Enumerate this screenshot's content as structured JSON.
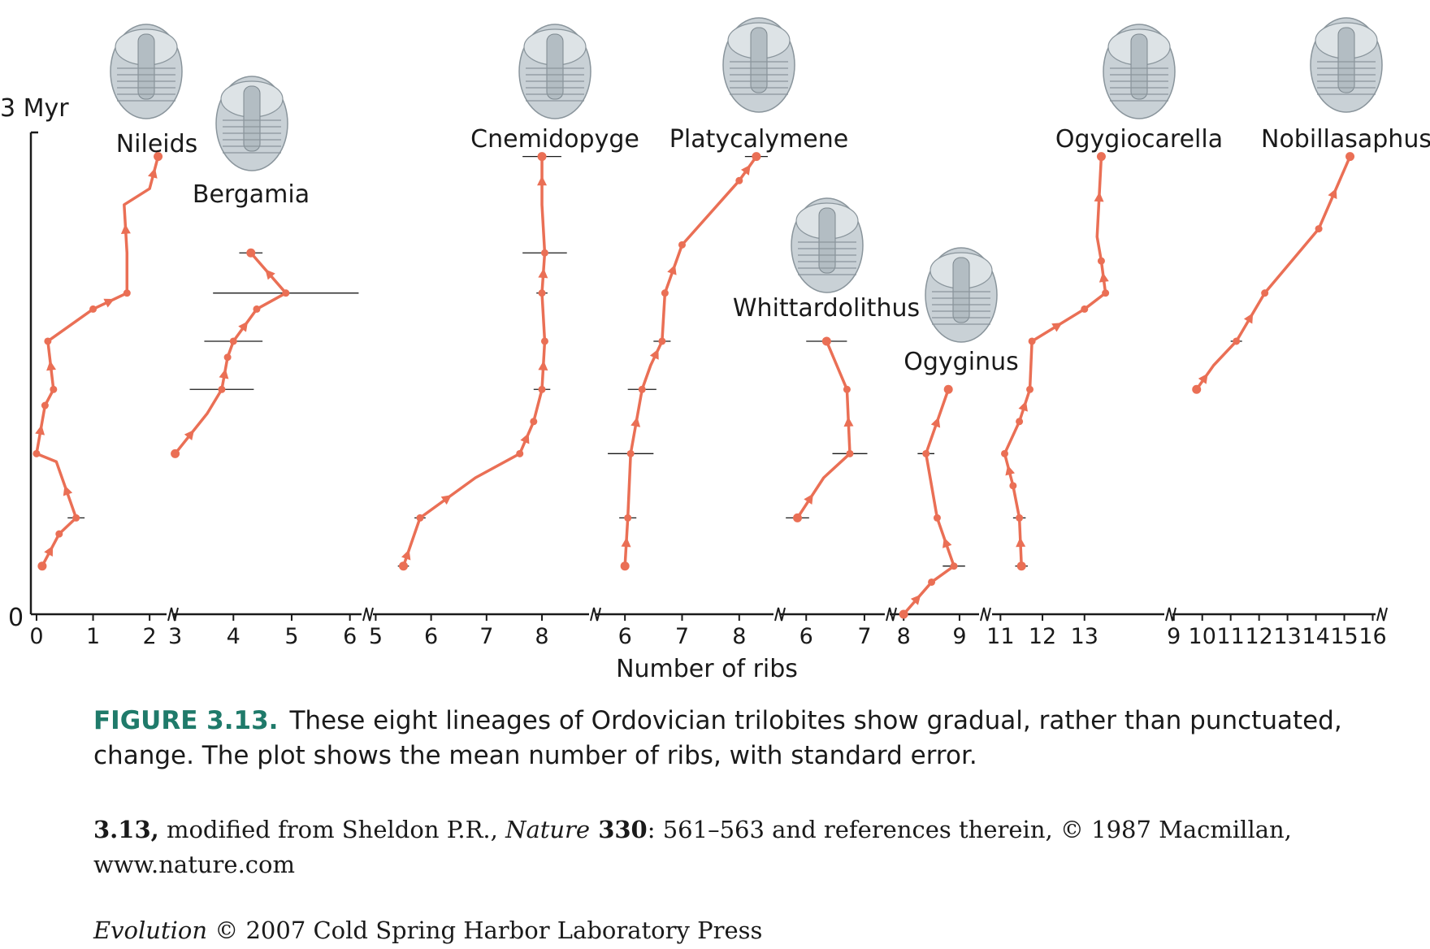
{
  "chart_data": {
    "type": "line",
    "ylabel_top": "3 Myr",
    "ylabel_bottom": "0",
    "xlabel": "Number of ribs",
    "ylim": [
      0,
      3
    ],
    "series_color": "#ea6f55",
    "panels": [
      {
        "name": "Nileids",
        "icon": "trilobite-nileid-icon",
        "xlim": [
          -0.1,
          2.3
        ],
        "ticks": [
          0,
          1,
          2
        ],
        "points": [
          [
            0.1,
            0.3,
            0
          ],
          [
            0.4,
            0.5,
            0
          ],
          [
            0.7,
            0.6,
            0.15
          ],
          [
            0.35,
            0.95,
            0
          ],
          [
            0.0,
            1.0,
            0
          ],
          [
            0.15,
            1.3,
            0
          ],
          [
            0.3,
            1.4,
            0.05
          ],
          [
            0.2,
            1.7,
            0
          ],
          [
            1.0,
            1.9,
            0
          ],
          [
            1.6,
            2.0,
            0.05
          ],
          [
            1.6,
            2.25,
            0
          ],
          [
            1.55,
            2.55,
            0
          ],
          [
            2.0,
            2.65,
            0
          ],
          [
            2.15,
            2.85,
            0
          ]
        ]
      },
      {
        "name": "Bergamia",
        "icon": "trilobite-bergamia-icon",
        "xlim": [
          2.95,
          6.2
        ],
        "ticks": [
          3,
          4,
          5,
          6
        ],
        "points": [
          [
            3.0,
            1.0,
            0
          ],
          [
            3.55,
            1.25,
            0
          ],
          [
            3.8,
            1.4,
            0.55
          ],
          [
            3.9,
            1.6,
            0
          ],
          [
            4.0,
            1.7,
            0.5
          ],
          [
            4.4,
            1.9,
            0
          ],
          [
            4.9,
            2.0,
            1.25
          ],
          [
            4.3,
            2.25,
            0.2
          ]
        ]
      },
      {
        "name": "Cnemidopyge",
        "icon": "trilobite-cnemidopyge-icon",
        "xlim": [
          4.95,
          8.85
        ],
        "ticks": [
          5,
          6,
          7,
          8
        ],
        "points": [
          [
            5.5,
            0.3,
            0.1
          ],
          [
            5.65,
            0.45,
            0
          ],
          [
            5.8,
            0.6,
            0.1
          ],
          [
            6.8,
            0.85,
            0
          ],
          [
            7.6,
            1.0,
            0
          ],
          [
            7.85,
            1.2,
            0
          ],
          [
            8.0,
            1.4,
            0.15
          ],
          [
            8.05,
            1.7,
            0
          ],
          [
            8.0,
            2.0,
            0.1
          ],
          [
            8.05,
            2.25,
            0.4
          ],
          [
            8.0,
            2.55,
            0
          ],
          [
            8.0,
            2.85,
            0.35
          ]
        ]
      },
      {
        "name": "Platycalymene",
        "icon": "trilobite-platycalymene-icon",
        "xlim": [
          5.5,
          8.6
        ],
        "ticks": [
          6,
          7,
          8
        ],
        "points": [
          [
            6.0,
            0.3,
            0
          ],
          [
            6.05,
            0.6,
            0.15
          ],
          [
            6.1,
            1.0,
            0.4
          ],
          [
            6.3,
            1.4,
            0.25
          ],
          [
            6.45,
            1.55,
            0
          ],
          [
            6.65,
            1.7,
            0.15
          ],
          [
            6.7,
            2.0,
            0
          ],
          [
            7.0,
            2.3,
            0
          ],
          [
            8.0,
            2.7,
            0
          ],
          [
            8.3,
            2.85,
            0.2
          ]
        ]
      },
      {
        "name": "Whittardolithus",
        "icon": "trilobite-whittardolithus-icon",
        "xlim": [
          5.55,
          7.35
        ],
        "ticks": [
          6,
          7
        ],
        "points": [
          [
            5.85,
            0.6,
            0.2
          ],
          [
            6.3,
            0.85,
            0
          ],
          [
            6.75,
            1.0,
            0.3
          ],
          [
            6.7,
            1.4,
            0
          ],
          [
            6.35,
            1.7,
            0.35
          ]
        ]
      },
      {
        "name": "Ogyginus",
        "icon": "trilobite-ogyginus-icon",
        "xlim": [
          7.75,
          9.35
        ],
        "ticks": [
          8,
          9
        ],
        "points": [
          [
            8.0,
            0.0,
            0
          ],
          [
            8.5,
            0.2,
            0
          ],
          [
            8.9,
            0.3,
            0.2
          ],
          [
            8.6,
            0.6,
            0
          ],
          [
            8.4,
            1.0,
            0.15
          ],
          [
            8.8,
            1.4,
            0
          ]
        ]
      },
      {
        "name": "Ogygiocarella",
        "icon": "trilobite-ogygiocarella-icon",
        "xlim": [
          10.8,
          14.9
        ],
        "ticks": [
          11,
          12,
          13
        ],
        "points": [
          [
            11.5,
            0.3,
            0.15
          ],
          [
            11.45,
            0.6,
            0.15
          ],
          [
            11.3,
            0.8,
            0
          ],
          [
            11.1,
            1.0,
            0
          ],
          [
            11.45,
            1.2,
            0
          ],
          [
            11.7,
            1.4,
            0
          ],
          [
            11.75,
            1.7,
            0
          ],
          [
            13.0,
            1.9,
            0
          ],
          [
            13.5,
            2.0,
            0
          ],
          [
            13.4,
            2.2,
            0
          ],
          [
            13.3,
            2.35,
            0
          ],
          [
            13.4,
            2.85,
            0
          ]
        ]
      },
      {
        "name": "Nobillasaphus",
        "icon": "trilobite-nobillasaphus-icon",
        "xlim": [
          8.95,
          16.1
        ],
        "ticks": [
          9,
          10,
          11,
          12,
          13,
          14,
          15,
          16
        ],
        "points": [
          [
            9.8,
            1.4,
            0
          ],
          [
            10.4,
            1.55,
            0
          ],
          [
            11.2,
            1.7,
            0.2
          ],
          [
            12.2,
            2.0,
            0
          ],
          [
            14.1,
            2.4,
            0
          ],
          [
            15.2,
            2.85,
            0
          ]
        ]
      }
    ]
  },
  "caption": {
    "figure_label": "FIGURE 3.13.",
    "text": "These eight lineages of Ordovician trilobites show gradual, rather than punctuated, change. The plot shows the mean number of ribs, with standard error."
  },
  "credit": {
    "lead": "3.13,",
    "text1": " modified from Sheldon P.R., ",
    "journal": "Nature",
    "volume": " 330",
    "text2": ": 561–563 and references therein, © 1987 Macmillan, www.nature.com"
  },
  "footer": {
    "book": "Evolution",
    "text": " © 2007 Cold Spring Harbor Laboratory Press"
  }
}
